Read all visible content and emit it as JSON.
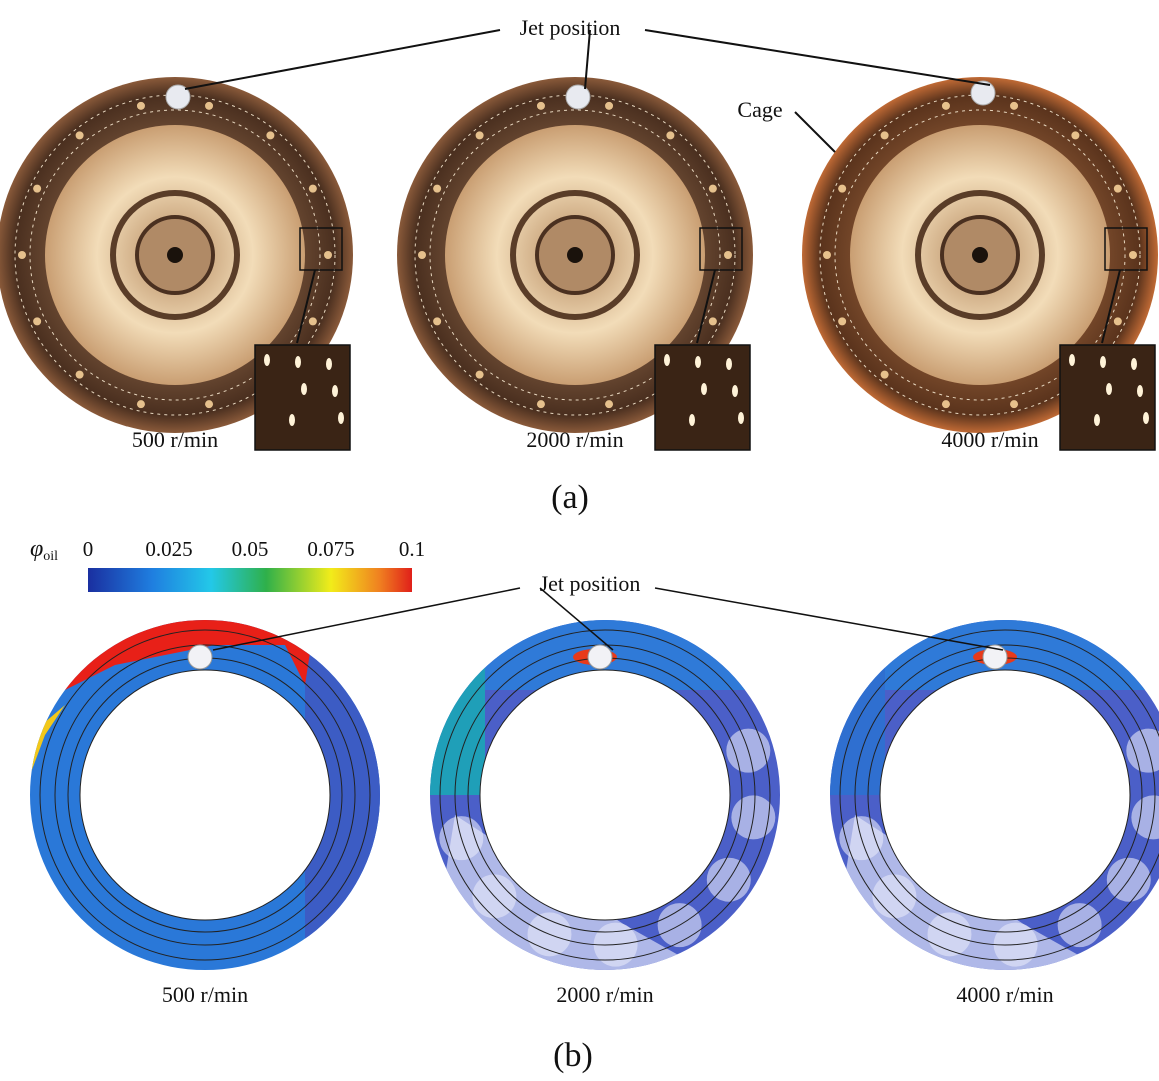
{
  "panel_a": {
    "jet_label": "Jet position",
    "cage_label": "Cage",
    "speeds": [
      "500 r/min",
      "2000 r/min",
      "4000 r/min"
    ],
    "caption": "(a)"
  },
  "panel_b": {
    "colorbar": {
      "symbol": "φ",
      "subscript": "oil",
      "ticks": [
        0,
        0.025,
        0.05,
        0.075,
        0.1
      ]
    },
    "jet_label": "Jet position",
    "speeds": [
      "500 r/min",
      "2000 r/min",
      "4000 r/min"
    ],
    "caption": "(b)"
  }
}
